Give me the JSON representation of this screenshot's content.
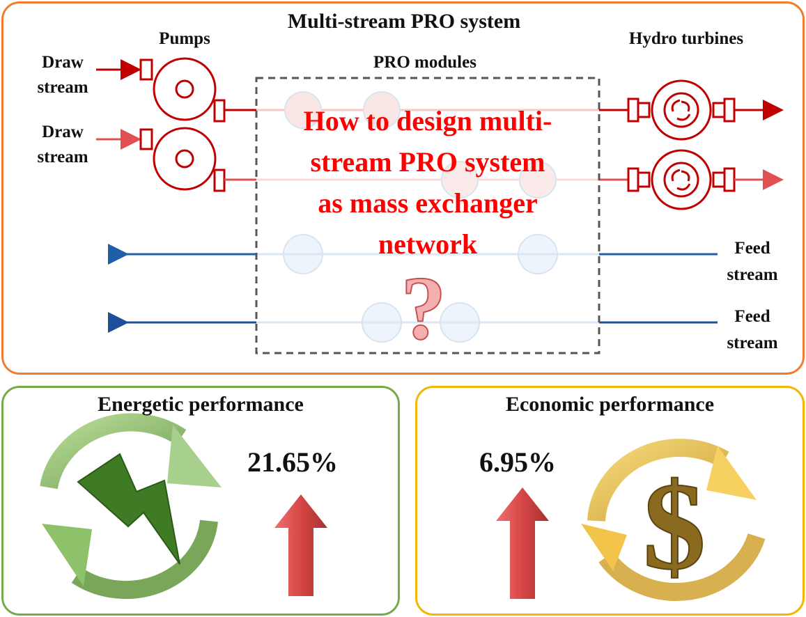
{
  "top": {
    "title": "Multi-stream PRO system",
    "pumps_label": "Pumps",
    "pro_modules_label": "PRO modules",
    "turbines_label": "Hydro turbines",
    "draw_stream_1": [
      "Draw",
      "stream"
    ],
    "draw_stream_2": [
      "Draw",
      "stream"
    ],
    "feed_stream_1": [
      "Feed",
      "stream"
    ],
    "feed_stream_2": [
      "Feed",
      "stream"
    ],
    "question_lines": [
      "How to design multi-",
      "stream PRO system",
      "as mass exchanger",
      "network"
    ],
    "question_mark": "?"
  },
  "energy": {
    "title": "Energetic performance",
    "value": "21.65%",
    "icon": "lightning-cycle-icon"
  },
  "economic": {
    "title": "Economic performance",
    "value": "6.95%",
    "icon": "dollar-cycle-icon"
  },
  "colors": {
    "top_border": "#ee7d30",
    "energy_border": "#70ad47",
    "economic_border": "#f2b705",
    "draw_red": "#c00000",
    "feed_blue": "#1f5fa8",
    "question_red": "#ff0000",
    "up_arrow": "#d64545"
  }
}
